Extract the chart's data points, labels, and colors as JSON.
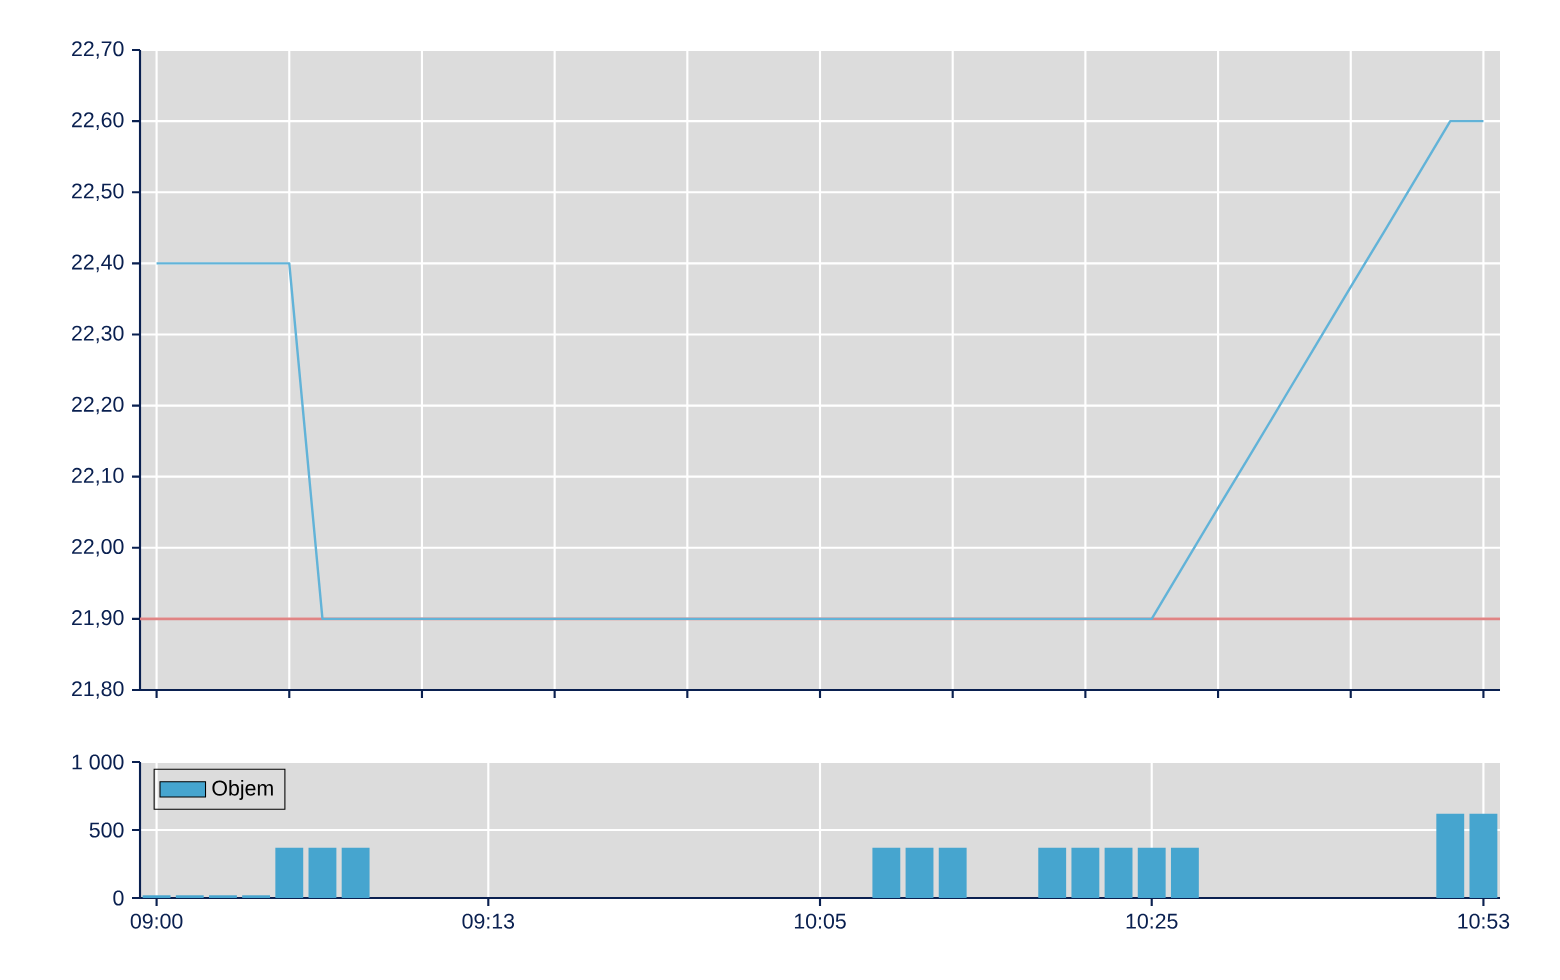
{
  "chart_data": [
    {
      "type": "line",
      "categories": [
        null,
        null,
        null,
        null,
        null,
        null,
        null,
        null,
        null,
        null,
        null,
        null,
        null,
        null,
        null,
        null,
        null,
        null,
        null,
        null,
        null,
        null,
        null,
        null,
        null,
        null,
        null,
        null,
        null,
        null,
        null,
        null,
        null,
        null,
        null,
        null,
        null,
        null,
        null,
        null,
        null
      ],
      "values": [
        22.4,
        22.4,
        22.4,
        22.4,
        22.4,
        21.9,
        21.9,
        21.9,
        21.9,
        21.9,
        21.9,
        21.9,
        21.9,
        21.9,
        21.9,
        21.9,
        21.9,
        21.9,
        21.9,
        21.9,
        21.9,
        21.9,
        21.9,
        21.9,
        21.9,
        21.9,
        21.9,
        21.9,
        21.9,
        21.9,
        21.9,
        21.978,
        22.056,
        22.133,
        22.211,
        22.289,
        22.367,
        22.444,
        22.522,
        22.6,
        22.6
      ],
      "color": "#62b3d8",
      "line_style": "solid",
      "ylim": [
        21.8,
        22.7
      ],
      "yticks": [
        {
          "value": 21.8,
          "label": "21,80"
        },
        {
          "value": 21.9,
          "label": "21,90"
        },
        {
          "value": 22.0,
          "label": "22,00"
        },
        {
          "value": 22.1,
          "label": "22,10"
        },
        {
          "value": 22.2,
          "label": "22,20"
        },
        {
          "value": 22.3,
          "label": "22,30"
        },
        {
          "value": 22.4,
          "label": "22,40"
        },
        {
          "value": 22.5,
          "label": "22,50"
        },
        {
          "value": 22.6,
          "label": "22,60"
        },
        {
          "value": 22.7,
          "label": "22,70"
        }
      ],
      "ref_lines": [
        {
          "axis": "y",
          "value": 21.9,
          "color": "#e08484"
        }
      ],
      "grid": true,
      "tick_labels": "y"
    },
    {
      "type": "bar",
      "categories": [
        "09:00",
        null,
        null,
        null,
        null,
        null,
        null,
        null,
        null,
        null,
        "09:13",
        null,
        null,
        null,
        null,
        null,
        null,
        null,
        null,
        null,
        "10:05",
        null,
        null,
        null,
        null,
        null,
        null,
        null,
        null,
        null,
        "10:25",
        null,
        null,
        null,
        null,
        null,
        null,
        null,
        null,
        null,
        "10:53"
      ],
      "series": [
        {
          "name": "Objem",
          "color": "#46a5cf",
          "values": [
            20,
            20,
            20,
            20,
            370,
            370,
            370,
            0,
            0,
            0,
            0,
            0,
            0,
            0,
            0,
            0,
            0,
            0,
            0,
            0,
            0,
            0,
            370,
            370,
            370,
            0,
            0,
            370,
            370,
            370,
            370,
            370,
            0,
            0,
            0,
            0,
            0,
            0,
            0,
            620,
            620
          ]
        }
      ],
      "ylim": [
        0,
        1000
      ],
      "yticks": [
        0,
        500,
        {
          "value": 1000,
          "label": "1 000"
        }
      ],
      "grid": true,
      "legend": "top left"
    }
  ]
}
